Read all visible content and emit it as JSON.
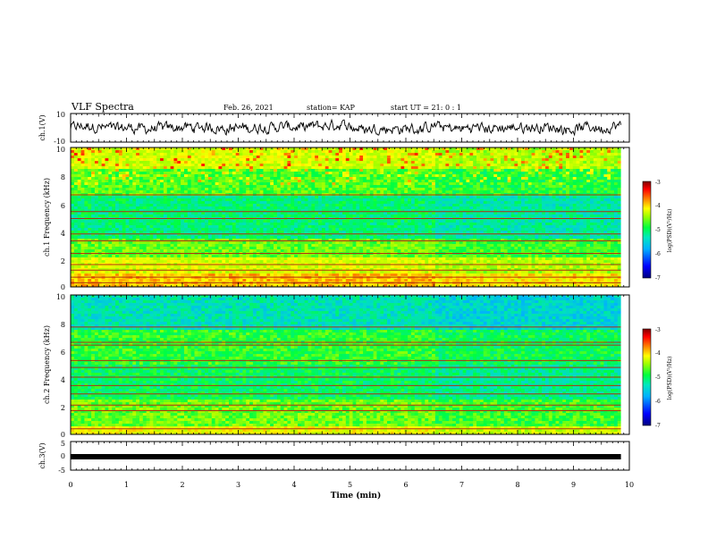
{
  "header": {
    "title": "VLF Spectra",
    "date": "Feb. 26, 2021",
    "station": "station= KAP",
    "start_ut": "start UT =  21: 0  : 1"
  },
  "colors": {
    "spectrogram_colormap": [
      "#00007f",
      "#0000ff",
      "#00b0ff",
      "#00e0c0",
      "#00ff40",
      "#a0ff00",
      "#ffff00",
      "#ff8000",
      "#ff0000",
      "#7f0000"
    ],
    "waveform": "#000000"
  },
  "chart_data": [
    {
      "type": "line",
      "id": "ch1-waveform",
      "ylabel": "ch.1(V)",
      "ylim": [
        -10,
        10
      ],
      "yticks": [
        "10",
        "-10"
      ],
      "x_range_min": [
        0,
        9.85
      ],
      "description_values": "noisy signal oscillating roughly between -4 and 5 V"
    },
    {
      "type": "heatmap",
      "id": "ch1-spectrogram",
      "ylabel": "ch.1 Frequency (kHz)",
      "xlim": [
        0,
        10
      ],
      "ylim": [
        0,
        10
      ],
      "yticks": [
        "0",
        "2",
        "4",
        "6",
        "8",
        "10"
      ],
      "colorbar": {
        "label": "log(PSD)(V²/Hz)",
        "range": [
          -7,
          -3
        ],
        "ticks": [
          "-3",
          "-4",
          "-5",
          "-6",
          "-7"
        ]
      }
    },
    {
      "type": "heatmap",
      "id": "ch2-spectrogram",
      "ylabel": "ch.2 Frequency (kHz)",
      "xlim": [
        0,
        10
      ],
      "ylim": [
        0,
        10
      ],
      "yticks": [
        "0",
        "2",
        "4",
        "6",
        "8",
        "10"
      ],
      "colorbar": {
        "label": "log(PSD)(V²/Hz)",
        "range": [
          -7,
          -3
        ],
        "ticks": [
          "-3",
          "-4",
          "-5",
          "-6",
          "-7"
        ]
      }
    },
    {
      "type": "line",
      "id": "ch3-waveform",
      "ylabel": "ch.3(V)",
      "ylim": [
        -5,
        5
      ],
      "yticks": [
        "5",
        "0",
        "-5"
      ],
      "xlabel": "Time (min)",
      "xlim": [
        0,
        10
      ],
      "xticks": [
        "0",
        "1",
        "2",
        "3",
        "4",
        "5",
        "6",
        "7",
        "8",
        "9",
        "10"
      ]
    }
  ]
}
